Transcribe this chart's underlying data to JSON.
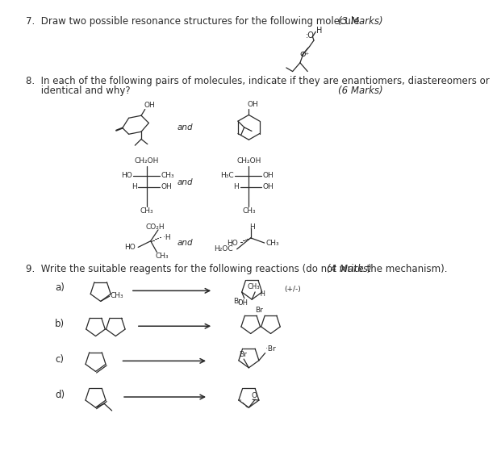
{
  "bg_color": "#ffffff",
  "q7_text": "7.  Draw two possible resonance structures for the following molecule.",
  "q7_marks": "(3 Marks)",
  "q8_line1": "8.  In each of the following pairs of molecules, indicate if they are enantiomers, diastereomers or",
  "q8_line2": "     identical and why?",
  "q8_marks": "(6 Marks)",
  "q9_text": "9.  Write the suitable reagents for the following reactions (do not write the mechanism).",
  "q9_marks": "(4 Marks)",
  "label_a": "a)",
  "label_b": "b)",
  "label_c": "c)",
  "label_d": "d)",
  "and": "and",
  "pm": "(+/-)"
}
